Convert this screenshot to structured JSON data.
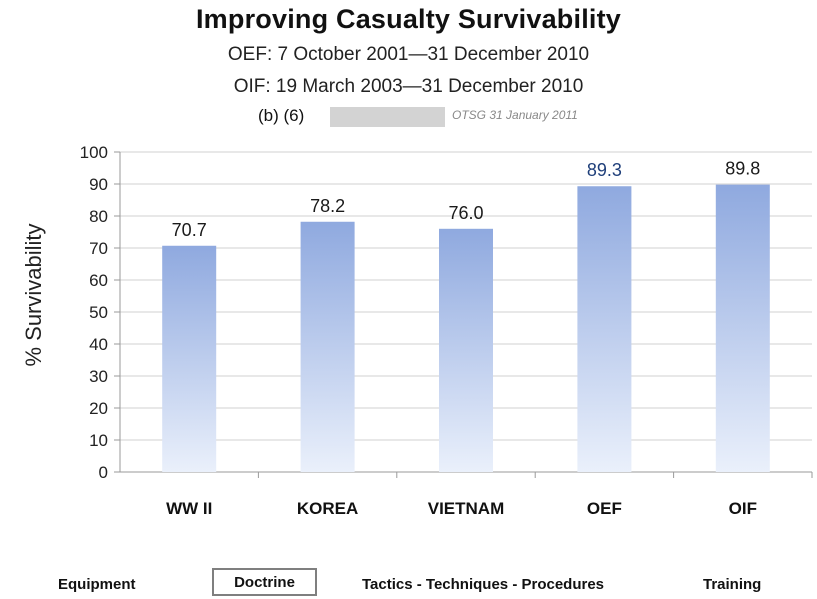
{
  "title": "Improving Casualty Survivability",
  "subtitle_oef": "OEF: 7 October 2001—31 December 2010",
  "subtitle_oif": "OIF: 19 March 2003—31 December 2010",
  "redaction_label": "(b) (6)",
  "source_note": "OTSG 31 January 2011",
  "bottom_items": [
    "Equipment",
    "Doctrine",
    "Tactics - Techniques - Procedures",
    "Training"
  ],
  "chart_data": {
    "type": "bar",
    "title": "Improving Casualty Survivability",
    "categories": [
      "WW II",
      "KOREA",
      "VIETNAM",
      "OEF",
      "OIF"
    ],
    "values": [
      70.7,
      78.2,
      76.0,
      89.3,
      89.8
    ],
    "value_labels": [
      "70.7",
      "78.2",
      "76.0",
      "89.3",
      "89.8"
    ],
    "value_label_colors": [
      "#1a1a1a",
      "#1a1a1a",
      "#1a1a1a",
      "#1f3f7a",
      "#1a1a1a"
    ],
    "ylabel": "% Survivability",
    "xlabel": "",
    "ylim": [
      0,
      100
    ],
    "yticks": [
      0,
      10,
      20,
      30,
      40,
      50,
      60,
      70,
      80,
      90,
      100
    ],
    "grid": true,
    "bar_color_top": "#8fa9df",
    "bar_color_bottom": "#eaf0fb"
  }
}
